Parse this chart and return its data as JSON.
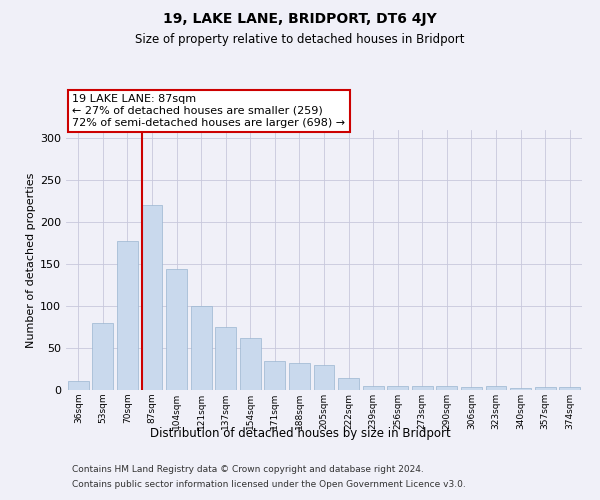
{
  "title1": "19, LAKE LANE, BRIDPORT, DT6 4JY",
  "title2": "Size of property relative to detached houses in Bridport",
  "xlabel": "Distribution of detached houses by size in Bridport",
  "ylabel": "Number of detached properties",
  "categories": [
    "36sqm",
    "53sqm",
    "70sqm",
    "87sqm",
    "104sqm",
    "121sqm",
    "137sqm",
    "154sqm",
    "171sqm",
    "188sqm",
    "205sqm",
    "222sqm",
    "239sqm",
    "256sqm",
    "273sqm",
    "290sqm",
    "306sqm",
    "323sqm",
    "340sqm",
    "357sqm",
    "374sqm"
  ],
  "values": [
    11,
    80,
    178,
    220,
    144,
    100,
    75,
    62,
    35,
    32,
    30,
    14,
    5,
    5,
    5,
    5,
    3,
    5,
    2,
    3,
    3
  ],
  "bar_color": "#c9d9ed",
  "bar_edgecolor": "#9ab5d0",
  "highlight_index": 3,
  "highlight_line_color": "#cc0000",
  "ylim": [
    0,
    310
  ],
  "yticks": [
    0,
    50,
    100,
    150,
    200,
    250,
    300
  ],
  "annotation_line1": "19 LAKE LANE: 87sqm",
  "annotation_line2": "← 27% of detached houses are smaller (259)",
  "annotation_line3": "72% of semi-detached houses are larger (698) →",
  "footer1": "Contains HM Land Registry data © Crown copyright and database right 2024.",
  "footer2": "Contains public sector information licensed under the Open Government Licence v3.0.",
  "background_color": "#f0f0f8",
  "grid_color": "#c8c8dc"
}
